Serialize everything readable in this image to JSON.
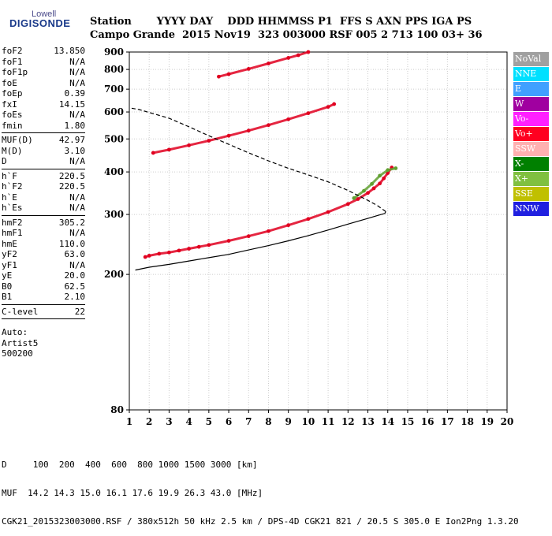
{
  "logo": {
    "line1": "Lowell",
    "line2": "DIGISONDE"
  },
  "header": {
    "row1": "Station       YYYY DAY    DDD HHMMSS P1  FFS S AXN PPS IGA PS",
    "row2": "Campo Grande  2015 Nov19  323 003000 RSF 005 2 713 100 03+ 36"
  },
  "params": {
    "g1": [
      [
        "foF2",
        "13.850"
      ],
      [
        "foF1",
        "N/A"
      ],
      [
        "foF1p",
        "N/A"
      ],
      [
        "foE",
        "N/A"
      ],
      [
        "foEp",
        "0.39"
      ],
      [
        "fxI",
        "14.15"
      ],
      [
        "foEs",
        "N/A"
      ],
      [
        "fmin",
        "1.80"
      ]
    ],
    "g2": [
      [
        "MUF(D)",
        "42.97"
      ],
      [
        "M(D)",
        "3.10"
      ],
      [
        "D",
        "N/A"
      ]
    ],
    "g3": [
      [
        "h`F",
        "220.5"
      ],
      [
        "h`F2",
        "220.5"
      ],
      [
        "h`E",
        "N/A"
      ],
      [
        "h`Es",
        "N/A"
      ]
    ],
    "g4": [
      [
        "hmF2",
        "305.2"
      ],
      [
        "hmF1",
        "N/A"
      ],
      [
        "hmE",
        "110.0"
      ],
      [
        "yF2",
        "63.0"
      ],
      [
        "yF1",
        "N/A"
      ],
      [
        "yE",
        "20.0"
      ],
      [
        "B0",
        "62.5"
      ],
      [
        "B1",
        "2.10"
      ]
    ],
    "g5": [
      [
        "C-level",
        "22"
      ]
    ],
    "auto": [
      "Auto:",
      "Artist5",
      "500200"
    ]
  },
  "legend": [
    {
      "label": "NoVal",
      "color": "#a0a0a0"
    },
    {
      "label": "NNE",
      "color": "#00e0ff"
    },
    {
      "label": "E",
      "color": "#40a0ff"
    },
    {
      "label": "W",
      "color": "#a000a0"
    },
    {
      "label": "Vo-",
      "color": "#ff20ff"
    },
    {
      "label": "Vo+",
      "color": "#ff0020"
    },
    {
      "label": "SSW",
      "color": "#ffb0b0"
    },
    {
      "label": "X-",
      "color": "#008000"
    },
    {
      "label": "X+",
      "color": "#80c040"
    },
    {
      "label": "SSE",
      "color": "#c0c000"
    },
    {
      "label": "NNW",
      "color": "#2020e0"
    }
  ],
  "footer": {
    "line1": "D     100  200  400  600  800 1000 1500 3000 [km]",
    "line2": "MUF  14.2 14.3 15.0 16.1 17.6 19.9 26.3 43.0 [MHz]",
    "line3": "CGK21_2015323003000.RSF / 380x512h 50 kHz 2.5 km / DPS-4D CGK21 821 / 20.5 S 305.0 E Ion2Png 1.3.20"
  },
  "chart_data": {
    "type": "scatter",
    "xlim": [
      1,
      20
    ],
    "ylim": [
      80,
      900
    ],
    "x_ticks": [
      1,
      2,
      3,
      4,
      5,
      6,
      7,
      8,
      9,
      10,
      11,
      12,
      13,
      14,
      15,
      16,
      17,
      18,
      19,
      20
    ],
    "y_ticks": [
      80,
      200,
      300,
      400,
      500,
      600,
      700,
      800,
      900
    ],
    "y_scale": "log",
    "grid": true,
    "legend_position": "right",
    "series": [
      {
        "name": "Vo+",
        "color": "#e00020",
        "style": "points",
        "x": [
          1.8,
          2,
          2.5,
          3,
          3.5,
          4,
          4.5,
          5,
          6,
          7,
          8,
          9,
          10,
          11,
          12,
          12.5,
          13,
          13.3,
          13.6,
          13.8,
          14,
          14.2
        ],
        "y": [
          225,
          227,
          230,
          232,
          235,
          238,
          241,
          244,
          251,
          259,
          268,
          279,
          291,
          305,
          322,
          333,
          347,
          358,
          370,
          383,
          397,
          412
        ]
      },
      {
        "name": "X+",
        "color": "#60a030",
        "style": "points",
        "x": [
          12.3,
          12.8,
          13.2,
          13.6,
          14,
          14.4
        ],
        "y": [
          335,
          352,
          369,
          390,
          405,
          410
        ]
      },
      {
        "name": "Vo+",
        "color": "#e00020",
        "style": "points",
        "x": [
          2.2,
          3,
          4,
          5,
          6,
          7,
          8,
          9,
          10,
          11,
          11.3
        ],
        "y": [
          455,
          465,
          479,
          494,
          511,
          529,
          549,
          571,
          595,
          621,
          633
        ]
      },
      {
        "name": "Vo+",
        "color": "#e00020",
        "style": "points",
        "x": [
          5.5,
          6,
          7,
          8,
          9,
          9.5,
          10
        ],
        "y": [
          762,
          775,
          803,
          833,
          865,
          881,
          900
        ]
      },
      {
        "name": "",
        "color": "#000000",
        "style": "solid",
        "x": [
          1.3,
          2,
          3,
          4,
          5,
          6,
          7,
          8,
          9,
          10,
          11,
          12,
          13,
          13.5,
          13.85,
          13.9
        ],
        "y": [
          206,
          210,
          214,
          219,
          224,
          229,
          236,
          243,
          251,
          260,
          270,
          281,
          292,
          298,
          302,
          306
        ]
      },
      {
        "name": "",
        "color": "#000000",
        "style": "dashed",
        "x": [
          13.9,
          13.5,
          13,
          12,
          11,
          10,
          9,
          8,
          7,
          6,
          5,
          4,
          3,
          2,
          1.5,
          1
        ],
        "y": [
          306,
          318,
          330,
          353,
          374,
          392,
          410,
          431,
          455,
          482,
          511,
          543,
          575,
          598,
          610,
          617
        ]
      }
    ]
  }
}
